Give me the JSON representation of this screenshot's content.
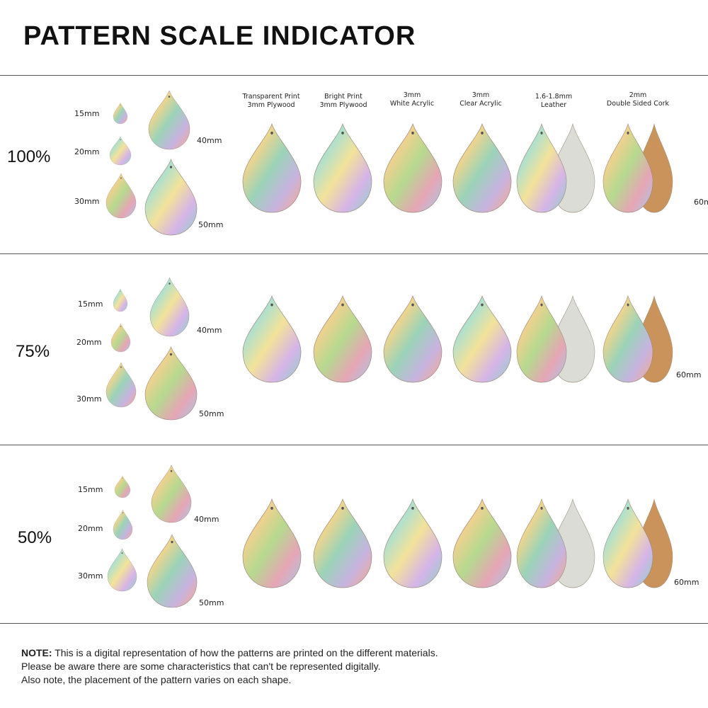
{
  "title": "PATTERN SCALE INDICATOR",
  "materials": [
    {
      "line1": "Transparent Print",
      "line2": "3mm Plywood"
    },
    {
      "line1": "Bright Print",
      "line2": "3mm Plywood"
    },
    {
      "line1": "3mm",
      "line2": "White Acrylic"
    },
    {
      "line1": "3mm",
      "line2": "Clear Acrylic"
    },
    {
      "line1": "1.6-1.8mm",
      "line2": "Leather"
    },
    {
      "line1": "2mm",
      "line2": "Double Sided Cork"
    }
  ],
  "rows": [
    {
      "scale": "100%",
      "sizes": [
        "15mm",
        "20mm",
        "30mm",
        "40mm",
        "50mm"
      ],
      "large_size": "60mm"
    },
    {
      "scale": "75%",
      "sizes": [
        "15mm",
        "20mm",
        "30mm",
        "40mm",
        "50mm"
      ],
      "large_size": "60mm"
    },
    {
      "scale": "50%",
      "sizes": [
        "15mm",
        "20mm",
        "30mm",
        "40mm",
        "50mm"
      ],
      "large_size": "60mm"
    }
  ],
  "note": {
    "label": "NOTE:",
    "line1": " This is a digital representation of how the patterns are printed on the different materials.",
    "line2": "Please be aware there are some characteristics that can't be represented digitally.",
    "line3": "Also note, the placement of the pattern varies on each shape."
  }
}
